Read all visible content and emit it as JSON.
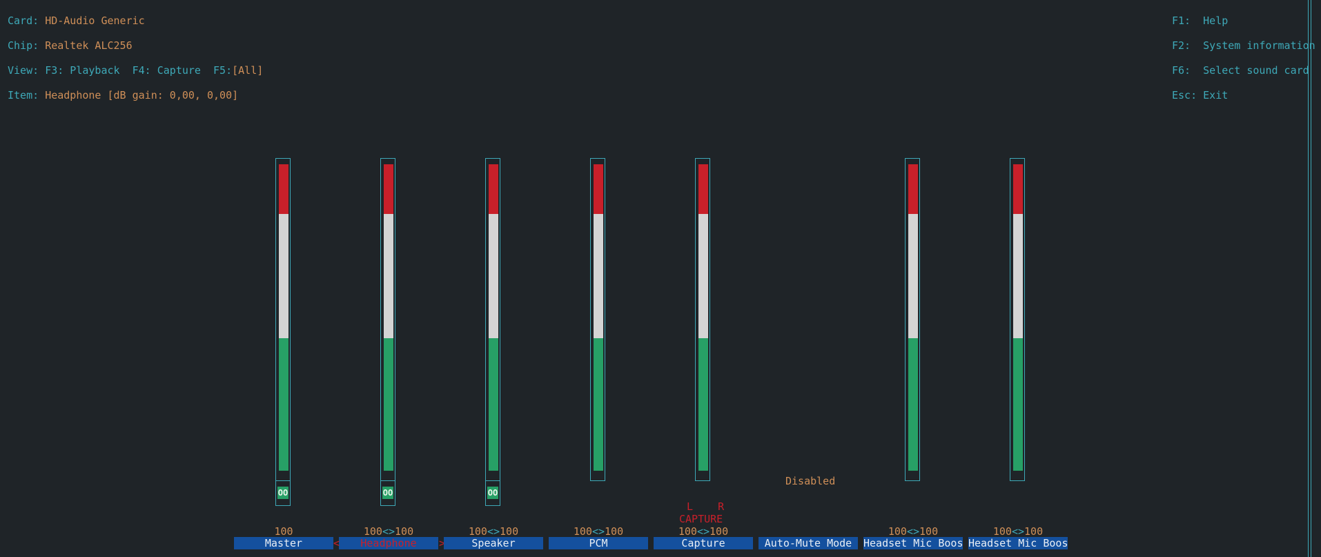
{
  "header": {
    "card_label": "Card:",
    "card_value": "HD-Audio Generic",
    "chip_label": "Chip:",
    "chip_value": "Realtek ALC256",
    "view_label": "View:",
    "view_f3": "F3: Playback",
    "view_f4": "F4: Capture",
    "view_f5_key": "F5:",
    "view_f5_value": "[All]",
    "item_label": "Item:",
    "item_value": "Headphone [dB gain: 0,00, 0,00]"
  },
  "keys": {
    "f1": "F1:  Help",
    "f2": "F2:  System information",
    "f6": "F6:  Select sound card",
    "esc": "Esc: Exit"
  },
  "controls": [
    {
      "name": "Master",
      "value_left": "100",
      "value_sep": "",
      "value_right": "",
      "level": 1.0,
      "switch": "OO",
      "selected": false
    },
    {
      "name": "Headphone",
      "value_left": "100",
      "value_sep": "<>",
      "value_right": "100",
      "level": 1.0,
      "switch": "OO",
      "selected": true
    },
    {
      "name": "Speaker",
      "value_left": "100",
      "value_sep": "<>",
      "value_right": "100",
      "level": 1.0,
      "switch": "OO",
      "selected": false
    },
    {
      "name": "PCM",
      "value_left": "100",
      "value_sep": "<>",
      "value_right": "100",
      "level": 1.0,
      "switch": "",
      "selected": false
    },
    {
      "name": "Capture",
      "value_left": "100",
      "value_sep": "<>",
      "value_right": "100",
      "level": 1.0,
      "switch": "",
      "selected": false
    },
    {
      "name": "Auto-Mute Mode",
      "value_left": "",
      "value_sep": "",
      "value_right": "",
      "enum_value": "Disabled",
      "selected": false
    },
    {
      "name": "Headset Mic Boost",
      "value_left": "100",
      "value_sep": "<>",
      "value_right": "100",
      "level": 1.0,
      "switch": "",
      "selected": false
    },
    {
      "name": "Headset Mic Boost",
      "value_left": "100",
      "value_sep": "<>",
      "value_right": "100",
      "level": 1.0,
      "switch": "",
      "selected": false
    }
  ],
  "capture_indicator": {
    "lr": "L    R",
    "label": "CAPTURE"
  },
  "colors": {
    "background": "#1f2428",
    "label": "#3ea9b8",
    "value": "#cf8f58",
    "red": "#c8202a",
    "white": "#d4d4d4",
    "green": "#27a066",
    "name_bg": "#14509e"
  }
}
